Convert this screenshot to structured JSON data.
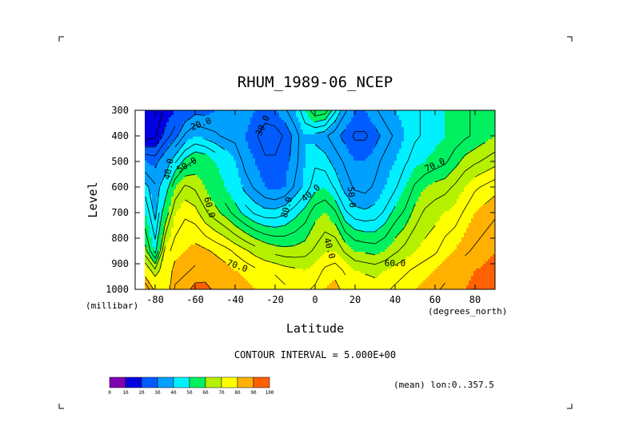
{
  "chart_data": {
    "type": "heatmap",
    "title": "RHUM_1989-06_NCEP",
    "xlabel": "Latitude",
    "ylabel": "Level",
    "x_unit": "(degrees_north)",
    "y_unit": "(millibar)",
    "xlim": [
      -90,
      90
    ],
    "ylim": [
      1000,
      300
    ],
    "x_ticks": [
      -80,
      -60,
      -40,
      -20,
      0,
      20,
      40,
      60,
      80
    ],
    "y_ticks": [
      300,
      400,
      500,
      600,
      700,
      800,
      900,
      1000
    ],
    "x_tick_labels": [
      "-80",
      "-60",
      "-40",
      "-20",
      "0",
      "20",
      "40",
      "60",
      "80"
    ],
    "y_tick_labels": [
      "300",
      "400",
      "500",
      "600",
      "700",
      "800",
      "900",
      "1000"
    ],
    "latitudes": [
      -90,
      -85,
      -80,
      -75,
      -70,
      -65,
      -60,
      -55,
      -50,
      -45,
      -40,
      -35,
      -30,
      -25,
      -20,
      -15,
      -10,
      -5,
      0,
      5,
      10,
      15,
      20,
      25,
      30,
      35,
      40,
      45,
      50,
      55,
      60,
      65,
      70,
      75,
      80,
      85,
      90
    ],
    "levels": [
      1000,
      925,
      850,
      700,
      600,
      500,
      400,
      300
    ],
    "values": [
      [
        -1,
        90,
        78,
        75,
        86,
        88,
        92,
        93,
        88,
        85,
        84,
        82,
        80,
        79,
        78,
        76,
        75,
        74,
        76,
        80,
        82,
        78,
        75,
        74,
        73,
        74,
        76,
        78,
        80,
        82,
        84,
        86,
        88,
        90,
        92,
        93,
        94
      ],
      [
        -1,
        75,
        66,
        75,
        82,
        84,
        86,
        85,
        84,
        82,
        80,
        78,
        76,
        75,
        74,
        72,
        71,
        70,
        72,
        76,
        78,
        74,
        70,
        69,
        68,
        70,
        72,
        74,
        76,
        78,
        80,
        83,
        85,
        88,
        90,
        91,
        92
      ],
      [
        -1,
        62,
        48,
        72,
        78,
        80,
        82,
        81,
        79,
        77,
        74,
        71,
        68,
        65,
        63,
        62,
        62,
        63,
        66,
        70,
        70,
        64,
        60,
        59,
        58,
        60,
        64,
        67,
        70,
        72,
        74,
        78,
        80,
        84,
        86,
        88,
        90
      ],
      [
        -1,
        50,
        38,
        55,
        70,
        74,
        72,
        66,
        62,
        58,
        53,
        48,
        44,
        42,
        42,
        44,
        48,
        52,
        58,
        60,
        56,
        46,
        42,
        41,
        42,
        46,
        52,
        56,
        62,
        66,
        68,
        70,
        72,
        76,
        80,
        82,
        84
      ],
      [
        -1,
        42,
        36,
        45,
        60,
        66,
        64,
        60,
        55,
        50,
        45,
        38,
        34,
        30,
        28,
        30,
        36,
        42,
        48,
        50,
        44,
        38,
        34,
        33,
        36,
        40,
        44,
        50,
        56,
        60,
        62,
        63,
        66,
        70,
        74,
        76,
        78
      ],
      [
        -1,
        30,
        28,
        35,
        44,
        52,
        56,
        55,
        50,
        45,
        40,
        33,
        30,
        26,
        26,
        28,
        33,
        40,
        44,
        42,
        38,
        34,
        30,
        30,
        33,
        37,
        40,
        44,
        48,
        50,
        52,
        54,
        58,
        62,
        64,
        66,
        68
      ],
      [
        -1,
        12,
        14,
        22,
        28,
        36,
        40,
        38,
        36,
        34,
        33,
        30,
        26,
        22,
        22,
        26,
        32,
        40,
        38,
        36,
        32,
        28,
        24,
        24,
        28,
        32,
        36,
        40,
        44,
        46,
        48,
        50,
        52,
        54,
        56,
        58,
        60
      ],
      [
        8,
        10,
        12,
        16,
        20,
        25,
        28,
        28,
        30,
        31,
        32,
        33,
        30,
        28,
        30,
        34,
        40,
        50,
        60,
        58,
        46,
        36,
        30,
        30,
        34,
        38,
        40,
        42,
        44,
        46,
        48,
        50,
        52,
        54,
        56,
        58,
        60
      ]
    ],
    "contour_interval": 5,
    "contour_labels": [
      "20.0",
      "30.0",
      "40.0",
      "50.0",
      "60.0",
      "70.0",
      "80.0",
      "40.0",
      "50.0",
      "40.0",
      "60.0",
      "70.0",
      "50.0"
    ],
    "colorbar_ticks": [
      "0",
      "10",
      "20",
      "30",
      "40",
      "50",
      "60",
      "70",
      "80",
      "90",
      "100"
    ],
    "colorbar_colors": [
      "#7f00b0",
      "#0000e0",
      "#005cff",
      "#00a0ff",
      "#00f0ff",
      "#00f060",
      "#b4f000",
      "#ffff00",
      "#ffb000",
      "#ff6000",
      "#ff0000"
    ],
    "grid": false,
    "legend": "bottom-left"
  },
  "annotations": {
    "contour_interval": "CONTOUR INTERVAL = 5.000E+00",
    "mean_label": "(mean) lon:0..357.5"
  }
}
